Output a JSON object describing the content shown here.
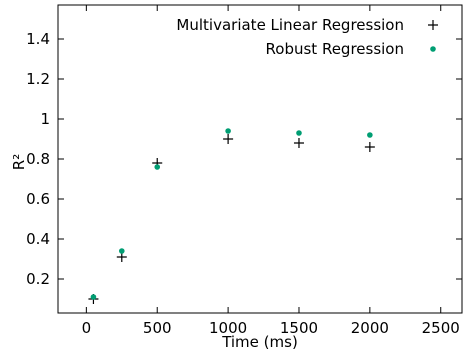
{
  "chart_data": {
    "type": "scatter",
    "xlabel": "Time (ms)",
    "ylabel": "R²",
    "xlim": [
      -200,
      2650
    ],
    "ylim": [
      0.03,
      1.57
    ],
    "x_ticks": [
      0,
      500,
      1000,
      1500,
      2000,
      2500
    ],
    "x_tick_labels": [
      "0",
      "500",
      "1000",
      "1500",
      "2000",
      "2500"
    ],
    "y_ticks": [
      0.2,
      0.4,
      0.6,
      0.8,
      1.0,
      1.2,
      1.4
    ],
    "y_tick_labels": [
      "0.2",
      "0.4",
      "0.6",
      "0.8",
      "1",
      "1.2",
      "1.4"
    ],
    "grid": false,
    "legend_position": "top-right",
    "series": [
      {
        "name": "Multivariate Linear Regression",
        "marker": "plus",
        "color": "#000000",
        "points": [
          {
            "x": 50,
            "y": 0.1
          },
          {
            "x": 250,
            "y": 0.31
          },
          {
            "x": 500,
            "y": 0.78
          },
          {
            "x": 1000,
            "y": 0.9
          },
          {
            "x": 1500,
            "y": 0.88
          },
          {
            "x": 2000,
            "y": 0.86
          }
        ]
      },
      {
        "name": "Robust Regression",
        "marker": "dot",
        "color": "#009e73",
        "points": [
          {
            "x": 50,
            "y": 0.11
          },
          {
            "x": 250,
            "y": 0.34
          },
          {
            "x": 500,
            "y": 0.76
          },
          {
            "x": 1000,
            "y": 0.94
          },
          {
            "x": 1500,
            "y": 0.93
          },
          {
            "x": 2000,
            "y": 0.92
          }
        ]
      }
    ]
  }
}
